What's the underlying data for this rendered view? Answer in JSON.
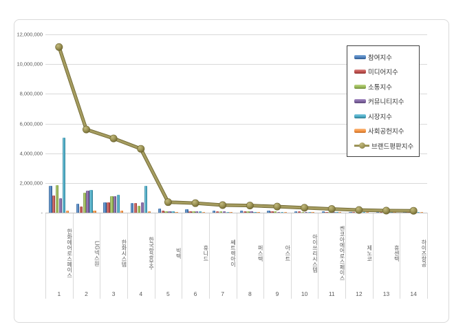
{
  "frame": {
    "border_color": "#d9d9d9",
    "background": "#ffffff"
  },
  "chart_data": {
    "type": "bar",
    "title": "",
    "xlabel": "",
    "ylabel": "",
    "ylim": [
      0,
      12000000
    ],
    "grid": true,
    "legend_position": "right-overlay",
    "y_ticks": [
      "12,000,000",
      "10,000,000",
      "8,000,000",
      "6,000,000",
      "4,000,000",
      "2,000,000",
      "-"
    ],
    "categories": [
      "한화에어로스페이스",
      "LIG넥스원",
      "한화시스템",
      "한국항공우주",
      "빅텍",
      "휴니드",
      "쎄트렉아이",
      "퍼스텍",
      "아스트",
      "아이쓰리시스템",
      "켄코아에어로스페이스",
      "제노코",
      "휴센텍",
      "하이즈항공"
    ],
    "category_ranks": [
      "1",
      "2",
      "3",
      "4",
      "5",
      "6",
      "7",
      "8",
      "9",
      "10",
      "11",
      "12",
      "13",
      "14"
    ],
    "series": [
      {
        "name": "참여지수",
        "type": "bar",
        "color": "#4F81BD",
        "light": "#7BA7D7",
        "dark": "#2F5A8B",
        "values": [
          1790000,
          600000,
          680000,
          650000,
          280000,
          240000,
          160000,
          150000,
          130000,
          100000,
          80000,
          60000,
          50000,
          40000
        ]
      },
      {
        "name": "미디어지수",
        "type": "bar",
        "color": "#C0504D",
        "light": "#D98582",
        "dark": "#8E3835",
        "values": [
          1140000,
          400000,
          700000,
          630000,
          120000,
          110000,
          100000,
          100000,
          80000,
          70000,
          50000,
          40000,
          30000,
          30000
        ]
      },
      {
        "name": "소통지수",
        "type": "bar",
        "color": "#9BBB59",
        "light": "#BCD383",
        "dark": "#71893C",
        "values": [
          1840000,
          1350000,
          1100000,
          450000,
          100000,
          110000,
          90000,
          90000,
          70000,
          60000,
          50000,
          30000,
          30000,
          30000
        ]
      },
      {
        "name": "커뮤니티지수",
        "type": "bar",
        "color": "#8064A2",
        "light": "#A48BC2",
        "dark": "#5C4675",
        "values": [
          980000,
          1500000,
          1120000,
          700000,
          90000,
          80000,
          80000,
          70000,
          60000,
          50000,
          40000,
          20000,
          20000,
          20000
        ]
      },
      {
        "name": "시장지수",
        "type": "bar",
        "color": "#4BACC6",
        "light": "#7CC8DD",
        "dark": "#31788C",
        "values": [
          5060000,
          1550000,
          1220000,
          1800000,
          80000,
          70000,
          60000,
          50000,
          40000,
          30000,
          20000,
          10000,
          10000,
          10000
        ]
      },
      {
        "name": "사회공헌지수",
        "type": "bar",
        "color": "#F79646",
        "light": "#FBB97E",
        "dark": "#C26A22",
        "values": [
          130000,
          120000,
          130000,
          90000,
          40000,
          30000,
          20000,
          20000,
          20000,
          20000,
          10000,
          10000,
          10000,
          10000
        ]
      },
      {
        "name": "브랜드평판지수",
        "type": "line",
        "color": "#9C9355",
        "light": "#C2BA7E",
        "dark": "#6E6630",
        "values": [
          11150000,
          5600000,
          5000000,
          4300000,
          710000,
          640000,
          510000,
          480000,
          410000,
          330000,
          250000,
          180000,
          140000,
          130000
        ]
      }
    ]
  }
}
